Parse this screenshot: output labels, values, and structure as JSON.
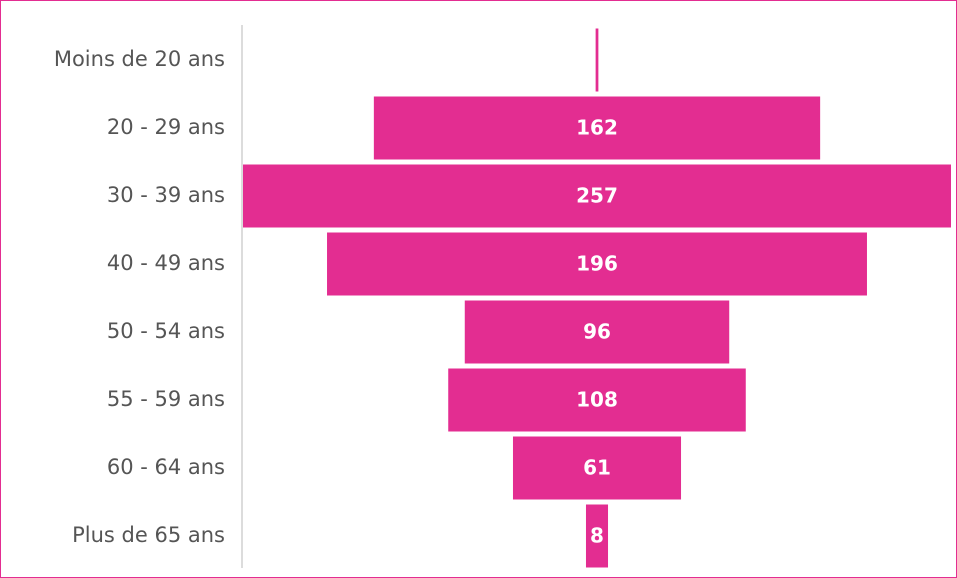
{
  "chart_data": {
    "type": "funnel",
    "categories": [
      "Moins de 20 ans",
      "20 - 29 ans",
      "30 - 39 ans",
      "40 - 49 ans",
      "50 - 54 ans",
      "55 - 59 ans",
      "60 - 64 ans",
      "Plus de 65 ans"
    ],
    "values": [
      1,
      162,
      257,
      196,
      96,
      108,
      61,
      8
    ],
    "color": "#e32d91"
  }
}
